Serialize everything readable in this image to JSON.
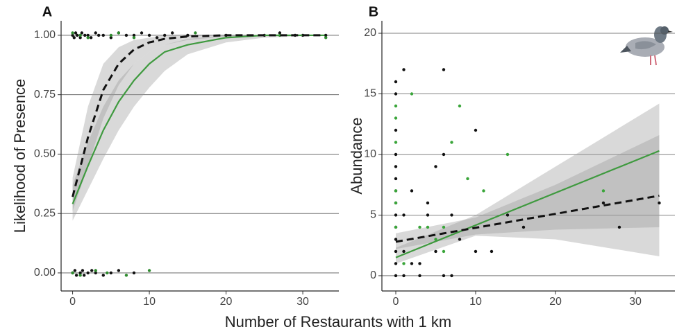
{
  "chart_data": [
    {
      "type": "scatter",
      "panel_label": "A",
      "y_label": "Likelihood of Presence",
      "xlim": [
        -1.5,
        34.7
      ],
      "ylim": [
        -0.076,
        1.061
      ],
      "xticks": [
        0,
        10,
        20,
        30
      ],
      "yticks": [
        {
          "value": 0,
          "label": "0.00"
        },
        {
          "value": 0.25,
          "label": "0.25"
        },
        {
          "value": 0.5,
          "label": "0.50"
        },
        {
          "value": 0.75,
          "label": "0.75"
        },
        {
          "value": 1,
          "label": "1.00"
        }
      ],
      "grid": true,
      "bands": [
        {
          "color": "#9a9a9a",
          "x": [
            0,
            2,
            4,
            6,
            8,
            10,
            12,
            15,
            20,
            25,
            33
          ],
          "lower": [
            0.22,
            0.35,
            0.48,
            0.6,
            0.7,
            0.78,
            0.85,
            0.92,
            0.97,
            0.99,
            1
          ],
          "upper": [
            0.37,
            0.55,
            0.7,
            0.81,
            0.88,
            0.93,
            0.96,
            0.985,
            1,
            1,
            1
          ]
        },
        {
          "color": "#9a9a9a",
          "x": [
            0,
            2,
            4,
            6,
            8,
            10,
            12,
            15,
            20,
            25,
            33
          ],
          "lower": [
            0.26,
            0.45,
            0.65,
            0.79,
            0.88,
            0.93,
            0.96,
            0.98,
            0.995,
            1,
            1
          ],
          "upper": [
            0.4,
            0.7,
            0.88,
            0.95,
            0.98,
            0.99,
            1,
            1,
            1,
            1,
            1
          ]
        }
      ],
      "series": [
        {
          "mode": "points",
          "color": "#111111",
          "x": [
            0,
            0.2,
            0.4,
            0.6,
            1,
            1.2,
            1.6,
            2,
            2.4,
            3,
            3.4,
            4,
            5,
            6,
            7,
            8,
            9,
            10,
            11,
            12,
            13,
            15,
            20,
            25,
            27,
            29,
            30,
            33,
            0,
            0.3,
            0.5,
            1,
            1.3,
            1.5,
            2,
            2.5,
            3,
            4,
            5,
            6,
            8
          ],
          "values": [
            1,
            0.99,
            1.01,
            1,
            0.99,
            1.01,
            1,
            1,
            0.99,
            1.01,
            1,
            1,
            0.99,
            1.01,
            1,
            1,
            1.01,
            1,
            0.99,
            1,
            1.01,
            1,
            1,
            1,
            1.01,
            1,
            1,
            1,
            0,
            0.01,
            -0.01,
            0,
            0.01,
            -0.01,
            0,
            0.01,
            0,
            -0.01,
            0,
            0.01,
            0
          ]
        },
        {
          "mode": "points",
          "color": "#2e8b2e",
          "x": [
            0,
            1,
            2,
            5,
            6,
            8,
            16,
            27,
            33,
            0,
            1,
            3,
            4.5,
            7,
            10
          ],
          "values": [
            1.01,
            1,
            0.99,
            1,
            1.01,
            0.99,
            1.01,
            1,
            0.99,
            0,
            -0.01,
            0.01,
            0,
            -0.01,
            0.01
          ]
        },
        {
          "mode": "line",
          "color": "#3f9a3f",
          "x": [
            0,
            2,
            4,
            6,
            8,
            10,
            12,
            15,
            20,
            25,
            33
          ],
          "values": [
            0.29,
            0.45,
            0.6,
            0.72,
            0.81,
            0.88,
            0.93,
            0.96,
            0.99,
            1,
            1
          ]
        },
        {
          "mode": "line",
          "dash": true,
          "color": "#111111",
          "x": [
            0,
            2,
            4,
            6,
            8,
            10,
            12,
            15,
            20,
            25,
            33
          ],
          "values": [
            0.32,
            0.57,
            0.77,
            0.88,
            0.94,
            0.97,
            0.985,
            0.995,
            1,
            1,
            1
          ]
        }
      ]
    },
    {
      "type": "scatter",
      "panel_label": "B",
      "y_label": "Abundance",
      "xlim": [
        -1.74,
        34.96
      ],
      "ylim": [
        -1.26,
        21.03
      ],
      "xticks": [
        0,
        10,
        20,
        30
      ],
      "yticks": [
        0,
        5,
        10,
        15,
        20
      ],
      "grid": true,
      "bands": [
        {
          "color": "#9a9a9a",
          "x": [
            0,
            10,
            20,
            33
          ],
          "lower": [
            1.0,
            3.3,
            3.0,
            1.6
          ],
          "upper": [
            2.3,
            5.0,
            9.0,
            14.2
          ]
        },
        {
          "color": "#9a9a9a",
          "x": [
            0,
            10,
            20,
            33
          ],
          "lower": [
            2.2,
            3.4,
            3.8,
            4.0
          ],
          "upper": [
            3.5,
            4.8,
            7.5,
            11.6
          ]
        }
      ],
      "series": [
        {
          "mode": "points",
          "color": "#111111",
          "x": [
            0,
            0,
            0,
            0,
            0,
            0,
            0,
            0,
            0,
            0,
            0,
            0,
            0,
            0,
            1,
            1,
            1,
            1,
            2,
            2,
            3,
            3,
            4,
            4,
            5,
            5,
            6,
            6,
            6,
            7,
            7,
            8,
            10,
            10,
            12,
            14,
            16,
            26,
            28,
            33
          ],
          "values": [
            0,
            1,
            2,
            3,
            4,
            5,
            6,
            7,
            8,
            9,
            10,
            12,
            15,
            16,
            17,
            0,
            5,
            2,
            7,
            1,
            1,
            0,
            6,
            5,
            9,
            2,
            17,
            10,
            0,
            0,
            5,
            3,
            12,
            2,
            2,
            5,
            4,
            6,
            4,
            6
          ]
        },
        {
          "mode": "points",
          "color": "#3aa53a",
          "x": [
            0,
            0,
            0,
            0,
            0,
            0,
            1,
            2,
            3,
            4,
            5,
            6,
            6,
            7,
            8,
            9,
            11,
            14,
            26
          ],
          "values": [
            14,
            13,
            11,
            7,
            6,
            4,
            1,
            15,
            4,
            4,
            3,
            4,
            2,
            11,
            14,
            8,
            7,
            10,
            7
          ]
        },
        {
          "mode": "line",
          "color": "#3f9a3f",
          "x": [
            0,
            33
          ],
          "values": [
            1.5,
            10.3
          ]
        },
        {
          "mode": "line",
          "dash": true,
          "color": "#111111",
          "x": [
            0,
            33
          ],
          "values": [
            2.8,
            6.6
          ]
        }
      ]
    }
  ],
  "footer": {
    "x_label": "Number of Restaurants with 1 km"
  }
}
